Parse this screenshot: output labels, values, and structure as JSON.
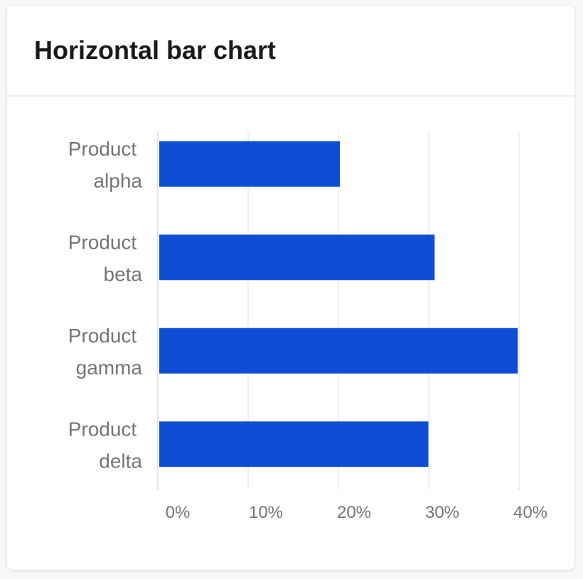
{
  "chart_data": {
    "type": "hbar",
    "title": "Horizontal bar chart",
    "categories": [
      "Product alpha",
      "Product beta",
      "Product gamma",
      "Product delta"
    ],
    "values": [
      20,
      30.5,
      39.7,
      29.8
    ],
    "color": "#0f4ed4",
    "xlim": [
      0,
      40
    ],
    "xticks": [
      {
        "value": 0,
        "label": "0%"
      },
      {
        "value": 10,
        "label": "10%"
      },
      {
        "value": 20,
        "label": "20%"
      },
      {
        "value": 30,
        "label": "30%"
      },
      {
        "value": 40,
        "label": "40%"
      }
    ],
    "grid": true
  }
}
